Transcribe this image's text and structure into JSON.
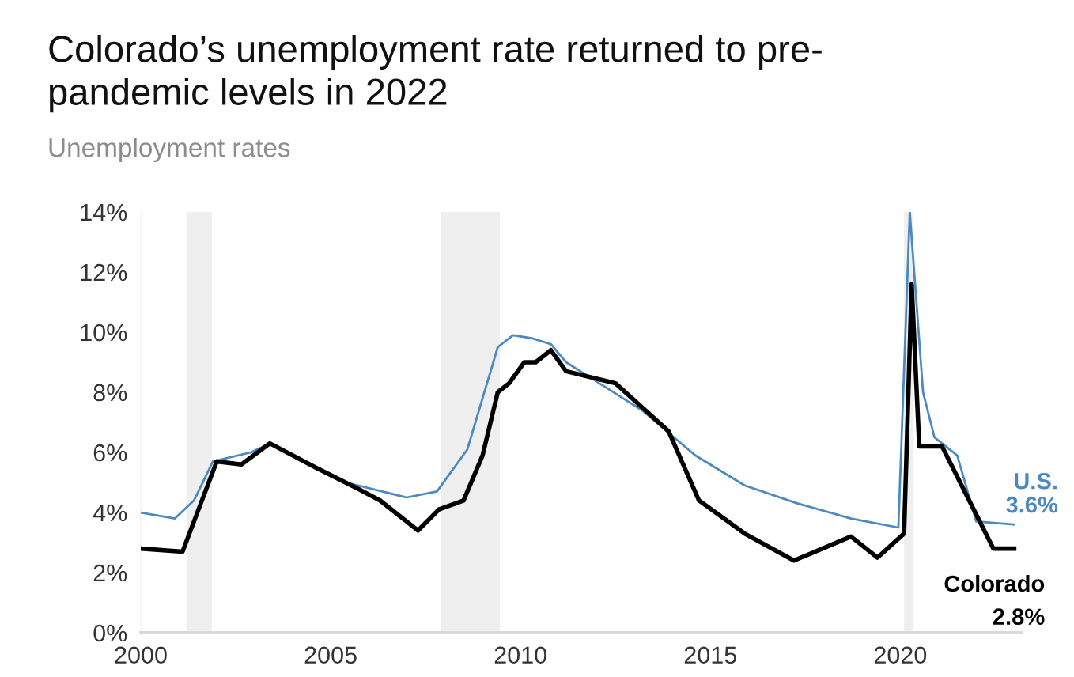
{
  "chart_data": {
    "type": "line",
    "title": "Colorado’s unemployment rate returned to pre-\npandemic levels in 2022",
    "subtitle": "Unemployment rates",
    "xlim": [
      2000,
      2023.2
    ],
    "xticks": [
      2000,
      2005,
      2010,
      2015,
      2020
    ],
    "ylim": [
      0,
      14
    ],
    "yticks": [
      {
        "value": 0,
        "label": "0%"
      },
      {
        "value": 2,
        "label": "2%"
      },
      {
        "value": 4,
        "label": "4%"
      },
      {
        "value": 6,
        "label": "6%"
      },
      {
        "value": 8,
        "label": "8%"
      },
      {
        "value": 10,
        "label": "10%"
      },
      {
        "value": 12,
        "label": "12%"
      },
      {
        "value": 14,
        "label": "14%"
      }
    ],
    "grid": false,
    "legend": false,
    "bands": [
      {
        "axis": "x",
        "from": 2001.2,
        "to": 2001.87,
        "color": "#efefef"
      },
      {
        "axis": "x",
        "from": 2007.9,
        "to": 2009.46,
        "color": "#efefef"
      },
      {
        "axis": "x",
        "from": 2020.1,
        "to": 2020.35,
        "color": "#efefef"
      }
    ],
    "series": [
      {
        "name": "U.S.",
        "color": "#4a8ac0",
        "x": [
          2000,
          2000.9,
          2001.4,
          2001.9,
          2002.9,
          2003.4,
          2005.4,
          2007.0,
          2007.8,
          2008.6,
          2009.4,
          2009.8,
          2010.3,
          2010.8,
          2011.2,
          2012.2,
          2013.2,
          2014.6,
          2015.9,
          2017.3,
          2018.7,
          2019.95,
          2020.25,
          2020.6,
          2020.9,
          2021.5,
          2022.0,
          2023.0
        ],
        "values": [
          4.0,
          3.8,
          4.4,
          5.7,
          6.0,
          6.3,
          5.0,
          4.5,
          4.7,
          6.1,
          9.5,
          9.9,
          9.8,
          9.6,
          9.0,
          8.2,
          7.4,
          5.9,
          4.9,
          4.3,
          3.8,
          3.5,
          14.0,
          8.0,
          6.5,
          5.9,
          3.7,
          3.6
        ]
      },
      {
        "name": "Colorado",
        "color": "#000000",
        "x": [
          2000,
          2001.1,
          2002.0,
          2002.65,
          2003.4,
          2004.6,
          2005.7,
          2006.3,
          2007.3,
          2007.85,
          2008.5,
          2009.0,
          2009.4,
          2009.7,
          2010.1,
          2010.4,
          2010.8,
          2011.2,
          2012.5,
          2013.9,
          2014.7,
          2015.9,
          2017.2,
          2018.7,
          2019.4,
          2020.1,
          2020.3,
          2020.5,
          2021.1,
          2022.45,
          2023.0
        ],
        "values": [
          2.8,
          2.7,
          5.7,
          5.6,
          6.3,
          5.5,
          4.8,
          4.4,
          3.4,
          4.1,
          4.4,
          5.9,
          8.0,
          8.3,
          9.0,
          9.0,
          9.4,
          8.7,
          8.3,
          6.7,
          4.4,
          3.3,
          2.4,
          3.2,
          2.5,
          3.3,
          11.6,
          6.2,
          6.2,
          2.8,
          2.8
        ]
      }
    ],
    "annotations": [
      "3.6%",
      "2.8%"
    ]
  }
}
